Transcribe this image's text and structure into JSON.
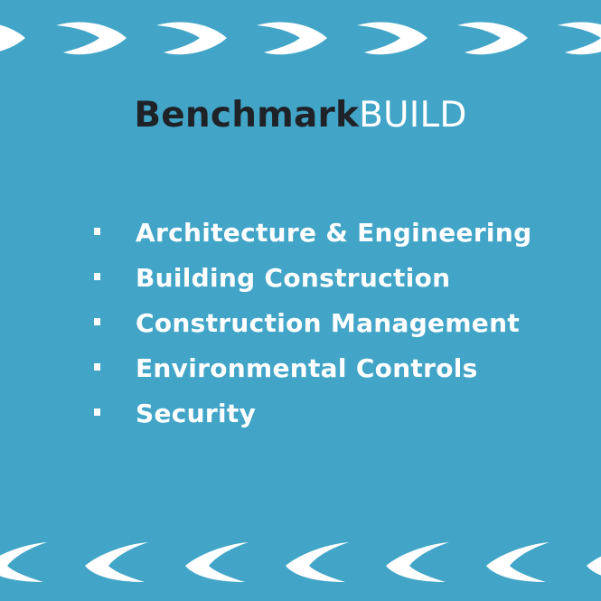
{
  "brand": {
    "part_dark": "Benchmark",
    "part_light": "BUILD",
    "dark_color": "#1f2328",
    "light_color": "#ffffff"
  },
  "background_color": "#42a5c8",
  "services": [
    {
      "label": "Architecture & Engineering"
    },
    {
      "label": "Building Construction"
    },
    {
      "label": "Construction Management"
    },
    {
      "label": "Environmental Controls"
    },
    {
      "label": "Security"
    }
  ],
  "decoration": {
    "top_border": "right-pointing-swoosh-icons",
    "bottom_border": "left-pointing-swoosh-icons"
  }
}
